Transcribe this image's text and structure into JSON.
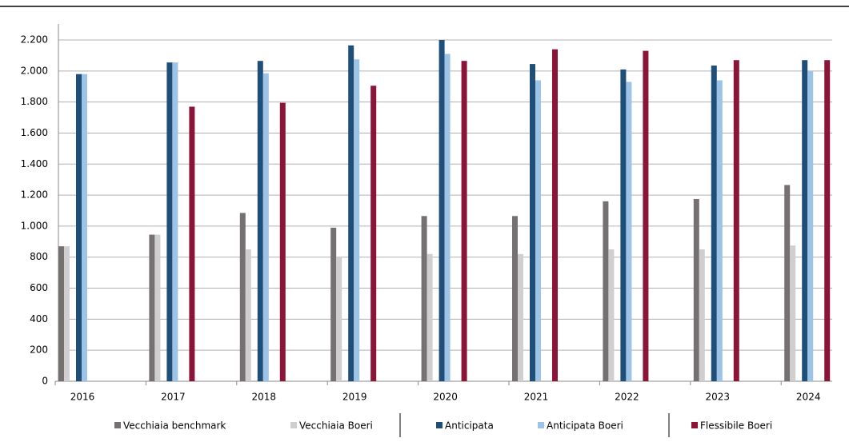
{
  "chart_data": {
    "type": "bar",
    "categories": [
      "2016",
      "2017",
      "2018",
      "2019",
      "2020",
      "2021",
      "2022",
      "2023",
      "2024"
    ],
    "series": [
      {
        "name": "Vecchiaia benchmark",
        "color": "#767171",
        "values": [
          870,
          945,
          1085,
          990,
          1065,
          1065,
          1160,
          1175,
          1265
        ]
      },
      {
        "name": "Vecchiaia Boeri",
        "color": "#d0cece",
        "values": [
          870,
          945,
          850,
          800,
          820,
          820,
          850,
          850,
          875
        ]
      },
      {
        "name": "Anticipata",
        "color": "#1f4e79",
        "values": [
          1980,
          2055,
          2065,
          2165,
          2200,
          2045,
          2010,
          2035,
          2070
        ]
      },
      {
        "name": "Anticipata Boeri",
        "color": "#9dc3e6",
        "values": [
          1980,
          2055,
          1985,
          2075,
          2110,
          1940,
          1930,
          1940,
          2000
        ]
      },
      {
        "name": "Flessibile Boeri",
        "color": "#8b1538",
        "values": [
          null,
          1770,
          1795,
          1905,
          2065,
          2140,
          2130,
          2070,
          2070
        ]
      }
    ],
    "ylim": [
      0,
      2200
    ],
    "yticks": [
      0,
      200,
      400,
      600,
      800,
      {
        "value": 1000,
        "label": "1.000"
      },
      {
        "value": 1200,
        "label": "1.200"
      },
      {
        "value": 1400,
        "label": "1.400"
      },
      {
        "value": 1600,
        "label": "1.600"
      },
      {
        "value": 1800,
        "label": "1.800"
      },
      {
        "value": 2000,
        "label": "2.000"
      },
      {
        "value": 2200,
        "label": "2.200"
      }
    ],
    "grid": true
  }
}
